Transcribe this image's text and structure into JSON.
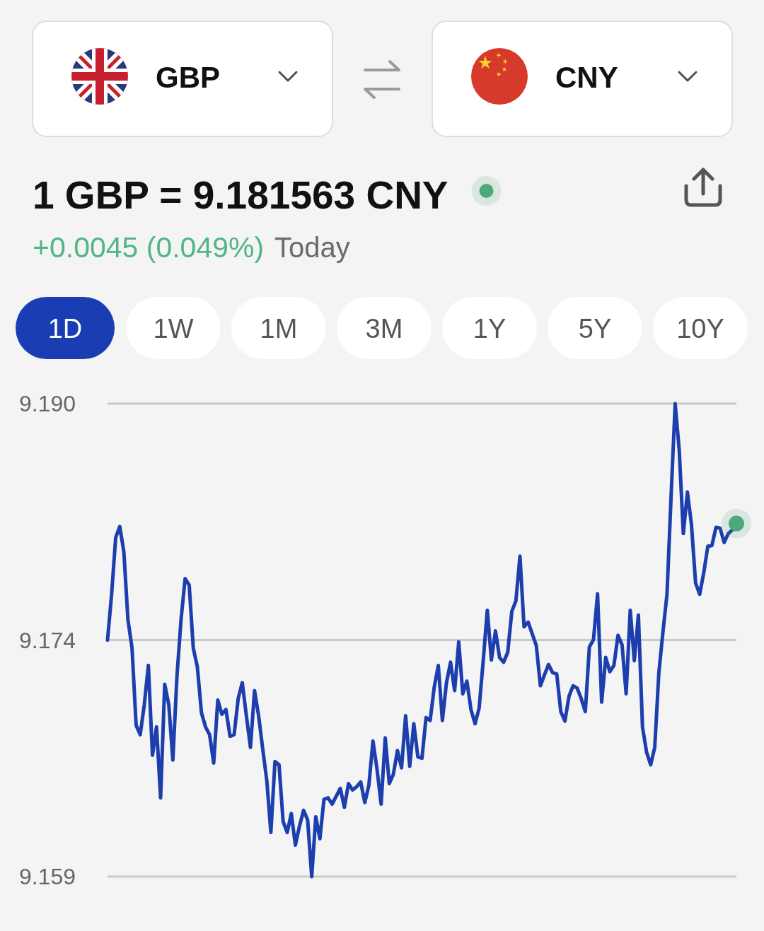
{
  "chart_data": {
    "type": "line",
    "title": "1 GBP = 9.181563 CNY",
    "subtitle": "+0.0045 (0.049%)",
    "annotations": [
      "Today",
      "GBP",
      "CNY",
      "1D",
      "1W",
      "1M",
      "3M",
      "1Y",
      "5Y",
      "10Y"
    ],
    "categories": [
      null,
      null,
      null,
      null,
      null,
      null,
      null,
      null,
      null,
      null,
      null,
      null,
      null,
      null,
      null,
      null,
      null,
      null,
      null,
      null,
      null,
      null,
      null,
      null,
      null,
      null,
      null,
      null,
      null,
      null,
      null,
      null,
      null,
      null,
      null,
      null,
      null,
      null,
      null,
      null,
      null,
      null,
      null,
      null,
      null,
      null,
      null,
      null,
      null,
      null,
      null,
      null,
      null,
      null,
      null,
      null,
      null,
      null,
      null,
      null,
      null,
      null,
      null,
      null,
      null,
      null,
      null,
      null,
      null,
      null,
      null,
      null,
      null,
      null,
      null,
      null,
      null,
      null,
      null,
      null,
      null,
      null,
      null,
      null,
      null,
      null,
      null,
      null,
      null,
      null,
      null,
      null,
      null,
      null,
      null,
      null,
      null,
      null,
      null,
      null,
      null,
      null,
      null,
      null,
      null,
      null,
      null,
      null,
      null,
      null,
      null,
      null,
      null,
      null,
      null,
      null,
      null,
      null,
      null,
      null,
      null,
      null,
      null,
      null,
      null,
      null,
      null,
      null,
      null,
      null,
      null,
      null,
      null,
      null,
      null,
      null,
      null,
      null,
      null,
      null,
      null,
      null,
      null,
      null,
      null,
      null,
      null,
      null,
      null,
      null,
      null,
      null,
      null,
      null,
      null
    ],
    "series": [
      {
        "color": "#1d3fad",
        "values": [
          9.1744,
          9.1774,
          9.18112,
          9.18184,
          9.18019,
          9.17574,
          9.17388,
          9.16882,
          9.1682,
          9.17016,
          9.17274,
          9.16685,
          9.16871,
          9.16406,
          9.1715,
          9.17016,
          9.16654,
          9.17202,
          9.17574,
          9.17843,
          9.17801,
          9.17388,
          9.17264,
          9.16964,
          9.16871,
          9.1682,
          9.16634,
          9.17047,
          9.16954,
          9.16985,
          9.16809,
          9.1682,
          9.17057,
          9.17161,
          9.16944,
          9.16737,
          9.17109,
          9.16944,
          9.16727,
          9.1652,
          9.16179,
          9.16644,
          9.16623,
          9.16251,
          9.16179,
          9.16303,
          9.16096,
          9.1622,
          9.16324,
          9.16262,
          9.1589,
          9.16282,
          9.16138,
          9.16396,
          9.16406,
          9.16365,
          9.16417,
          9.16468,
          9.16344,
          9.16499,
          9.16458,
          9.16479,
          9.1651,
          9.16375,
          9.16489,
          9.16778,
          9.16592,
          9.16365,
          9.16799,
          9.16499,
          9.16561,
          9.16716,
          9.16603,
          9.16944,
          9.16613,
          9.16892,
          9.16675,
          9.16665,
          9.16933,
          9.16913,
          9.1713,
          9.17274,
          9.16913,
          9.17161,
          9.17295,
          9.17109,
          9.17429,
          9.17088,
          9.17171,
          9.16985,
          9.16892,
          9.16995,
          9.17305,
          9.17636,
          9.1731,
          9.175,
          9.17326,
          9.17295,
          9.1736,
          9.17628,
          9.17697,
          9.1799,
          9.17527,
          9.17558,
          9.17481,
          9.17404,
          9.17141,
          9.17212,
          9.1728,
          9.17226,
          9.17218,
          9.16971,
          9.16909,
          9.17071,
          9.17141,
          9.17125,
          9.17057,
          9.16971,
          9.17396,
          9.17442,
          9.17743,
          9.17033,
          9.17326,
          9.17233,
          9.17274,
          9.17471,
          9.17409,
          9.17088,
          9.17636,
          9.17305,
          9.17605,
          9.16871,
          9.16706,
          9.16623,
          9.16737,
          9.17223,
          9.17491,
          9.1774,
          9.1838,
          9.1899,
          9.18684,
          9.18138,
          9.18411,
          9.18196,
          9.17815,
          9.1774,
          9.17881,
          9.18055,
          9.1806,
          9.18179,
          9.18174,
          9.1808,
          9.18138,
          9.18162,
          9.18204
        ]
      },
      {
        "type": "scatter",
        "color": "#4ea97a",
        "marker": "circle",
        "values": [
          null,
          null,
          null,
          null,
          null,
          null,
          null,
          null,
          null,
          null,
          null,
          null,
          null,
          null,
          null,
          null,
          null,
          null,
          null,
          null,
          null,
          null,
          null,
          null,
          null,
          null,
          null,
          null,
          null,
          null,
          null,
          null,
          null,
          null,
          null,
          null,
          null,
          null,
          null,
          null,
          null,
          null,
          null,
          null,
          null,
          null,
          null,
          null,
          null,
          null,
          null,
          null,
          null,
          null,
          null,
          null,
          null,
          null,
          null,
          null,
          null,
          null,
          null,
          null,
          null,
          null,
          null,
          null,
          null,
          null,
          null,
          null,
          null,
          null,
          null,
          null,
          null,
          null,
          null,
          null,
          null,
          null,
          null,
          null,
          null,
          null,
          null,
          null,
          null,
          null,
          null,
          null,
          null,
          null,
          null,
          null,
          null,
          null,
          null,
          null,
          null,
          null,
          null,
          null,
          null,
          null,
          null,
          null,
          null,
          null,
          null,
          null,
          null,
          null,
          null,
          null,
          null,
          null,
          null,
          null,
          null,
          null,
          null,
          null,
          null,
          null,
          null,
          null,
          null,
          null,
          null,
          null,
          null,
          null,
          null,
          null,
          null,
          null,
          null,
          null,
          null,
          null,
          null,
          null,
          null,
          null,
          null,
          null,
          null,
          null,
          null,
          null,
          null,
          null,
          9.18204
        ]
      }
    ],
    "ylim": [
      9.1589,
      9.1899
    ],
    "yticks": [
      {
        "value": 9.1589,
        "label": "9.159"
      },
      {
        "value": 9.1744,
        "label": "9.174"
      },
      {
        "value": 9.1899,
        "label": "9.190"
      }
    ],
    "grid": "y",
    "tick_labels": "y"
  }
}
